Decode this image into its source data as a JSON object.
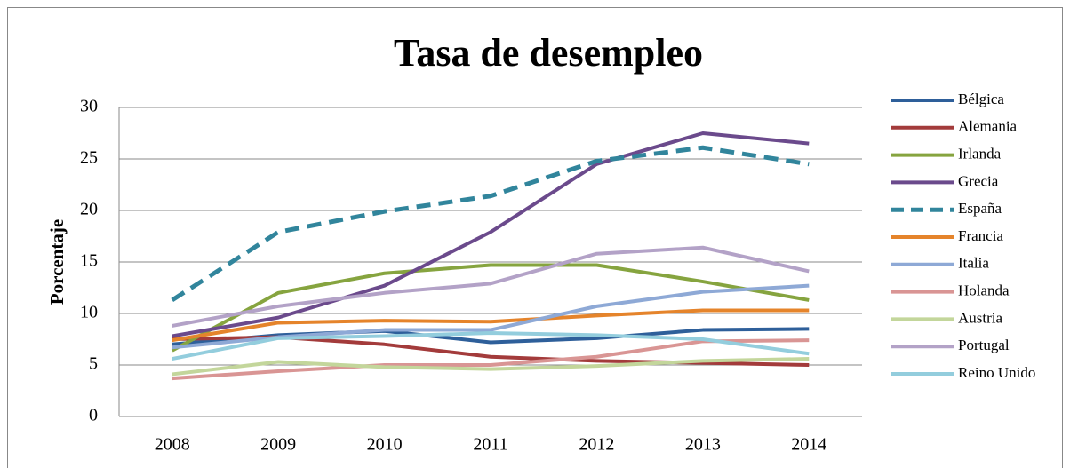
{
  "chart_data": {
    "type": "line",
    "title": "Tasa de desempleo",
    "y_label": "Porcentaje",
    "categories": [
      "2008",
      "2009",
      "2010",
      "2011",
      "2012",
      "2013",
      "2014"
    ],
    "ylim": [
      0,
      30
    ],
    "yticks": [
      0,
      5,
      10,
      15,
      20,
      25,
      30
    ],
    "grid": true,
    "legend": "right",
    "series": [
      {
        "name": "Bélgica",
        "color": "#2e5f9a",
        "values": [
          7.0,
          7.9,
          8.3,
          7.2,
          7.6,
          8.4,
          8.5
        ]
      },
      {
        "name": "Alemania",
        "color": "#a33b3b",
        "values": [
          7.5,
          7.7,
          7.0,
          5.8,
          5.4,
          5.2,
          5.0
        ]
      },
      {
        "name": "Irlanda",
        "color": "#86a43f",
        "values": [
          6.4,
          12.0,
          13.9,
          14.7,
          14.7,
          13.1,
          11.3
        ]
      },
      {
        "name": "Grecia",
        "color": "#6b4a8c",
        "values": [
          7.8,
          9.6,
          12.7,
          17.9,
          24.5,
          27.5,
          26.5
        ]
      },
      {
        "name": "España",
        "color": "#31859c",
        "dashed": true,
        "values": [
          11.3,
          17.9,
          19.9,
          21.4,
          24.8,
          26.1,
          24.5
        ]
      },
      {
        "name": "Francia",
        "color": "#e5842b",
        "values": [
          7.4,
          9.1,
          9.3,
          9.2,
          9.8,
          10.3,
          10.3
        ]
      },
      {
        "name": "Italia",
        "color": "#8ea9d6",
        "values": [
          6.7,
          7.7,
          8.4,
          8.4,
          10.7,
          12.1,
          12.7
        ]
      },
      {
        "name": "Holanda",
        "color": "#d99594",
        "values": [
          3.7,
          4.4,
          5.0,
          5.0,
          5.8,
          7.3,
          7.4
        ]
      },
      {
        "name": "Austria",
        "color": "#c3d69b",
        "values": [
          4.1,
          5.3,
          4.8,
          4.6,
          4.9,
          5.4,
          5.6
        ]
      },
      {
        "name": "Portugal",
        "color": "#b3a2c7",
        "values": [
          8.8,
          10.7,
          12.0,
          12.9,
          15.8,
          16.4,
          14.1
        ]
      },
      {
        "name": "Reino Unido",
        "color": "#93cddd",
        "values": [
          5.6,
          7.6,
          7.8,
          8.1,
          7.9,
          7.5,
          6.1
        ]
      }
    ]
  }
}
